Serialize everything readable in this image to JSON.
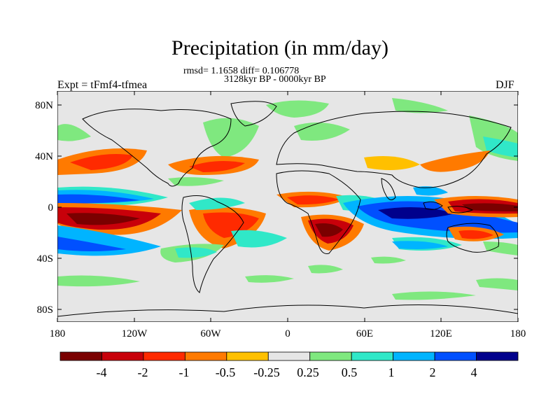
{
  "title": "Precipitation (in mm/day)",
  "stats": "rmsd= 1.1658 diff= 0.106778",
  "period": "3128kyr BP - 0000kyr BP",
  "experiment": "Expt = tFmf4-tfmea",
  "season": "DJF",
  "lat_labels": [
    "80N",
    "40N",
    "0",
    "40S",
    "80S"
  ],
  "lon_labels": [
    "180",
    "120W",
    "60W",
    "0",
    "60E",
    "120E",
    "180"
  ],
  "colorbar": {
    "colors": [
      "#7a0000",
      "#c8000a",
      "#ff2a00",
      "#ff7a00",
      "#ffc000",
      "#e6e6e6",
      "#7fe87f",
      "#30e8c8",
      "#00b4ff",
      "#0050ff",
      "#00008c"
    ],
    "labels": [
      "-4",
      "-2",
      "-1",
      "-0.5",
      "-0.25",
      "0.25",
      "0.5",
      "1",
      "2",
      "4"
    ]
  }
}
